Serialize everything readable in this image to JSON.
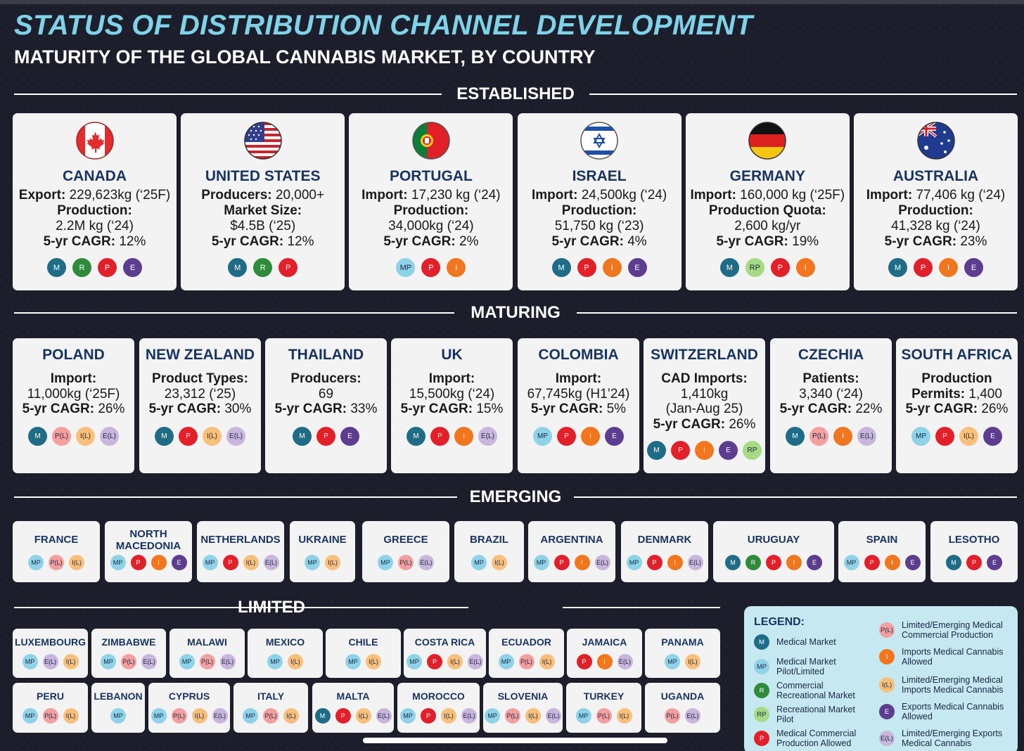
{
  "title": "STATUS OF DISTRIBUTION CHANNEL DEVELOPMENT",
  "subtitle": "MATURITY OF THE GLOBAL CANNABIS MARKET, BY COUNTRY",
  "sections": {
    "established": "ESTABLISHED",
    "maturing": "MATURING",
    "emerging": "EMERGING",
    "limited": "LIMITED"
  },
  "colors": {
    "M": "#1f6c87",
    "MP": "#8fd3e8",
    "R": "#2e8b3a",
    "RP": "#a6db85",
    "P": "#e3202a",
    "I": "#f2761e",
    "E": "#5c3d8f",
    "P(L)": "#f4a0a0",
    "I(L)": "#f9c07b",
    "E(L)": "#c8b6dc"
  },
  "established": [
    {
      "name": "CANADA",
      "flag": "canada-flag-icon",
      "stats": [
        [
          "Export:",
          " 229,623kg (‘25F)"
        ],
        [
          "Production:",
          ""
        ],
        [
          "",
          "2.2M kg (‘24)"
        ],
        [
          "5-yr CAGR:",
          " 12%"
        ]
      ],
      "badges": [
        "M",
        "R",
        "P",
        "E"
      ]
    },
    {
      "name": "UNITED STATES",
      "flag": "united-states-flag-icon",
      "stats": [
        [
          "Producers:",
          " 20,000+"
        ],
        [
          "Market Size:",
          ""
        ],
        [
          "",
          "$4.5B (‘25)"
        ],
        [
          "5-yr CAGR:",
          " 12%"
        ]
      ],
      "badges": [
        "M",
        "R",
        "P"
      ]
    },
    {
      "name": "PORTUGAL",
      "flag": "portugal-flag-icon",
      "stats": [
        [
          "Import:",
          " 17,230 kg (‘24)"
        ],
        [
          "Production:",
          ""
        ],
        [
          "",
          "34,000kg (‘24)"
        ],
        [
          "5-yr CAGR:",
          " 2%"
        ]
      ],
      "badges": [
        "MP",
        "P",
        "I"
      ]
    },
    {
      "name": "ISRAEL",
      "flag": "israel-flag-icon",
      "stats": [
        [
          "Import:",
          " 24,500kg (‘24)"
        ],
        [
          "Production:",
          ""
        ],
        [
          "",
          "51,750 kg (‘23)"
        ],
        [
          "5-yr CAGR:",
          " 4%"
        ]
      ],
      "badges": [
        "M",
        "P",
        "I",
        "E"
      ]
    },
    {
      "name": "GERMANY",
      "flag": "germany-flag-icon",
      "stats": [
        [
          "Import:",
          " 160,000 kg (‘25F)"
        ],
        [
          "Production Quota:",
          ""
        ],
        [
          "",
          "2,600 kg/yr"
        ],
        [
          "5-yr CAGR:",
          " 19%"
        ]
      ],
      "badges": [
        "M",
        "RP",
        "P",
        "I"
      ]
    },
    {
      "name": "AUSTRALIA",
      "flag": "australia-flag-icon",
      "stats": [
        [
          "Import:",
          " 77,406 kg (‘24)"
        ],
        [
          "Production:",
          ""
        ],
        [
          "",
          "41,328 kg (‘24)"
        ],
        [
          "5-yr CAGR:",
          " 23%"
        ]
      ],
      "badges": [
        "M",
        "P",
        "I",
        "E"
      ]
    }
  ],
  "maturing": [
    {
      "name": "POLAND",
      "stats": [
        [
          "Import:",
          ""
        ],
        [
          "",
          "11,000kg (‘25F)"
        ],
        [
          "5-yr CAGR:",
          " 26%"
        ]
      ],
      "badges": [
        "M",
        "P(L)",
        "I(L)",
        "E(L)"
      ]
    },
    {
      "name": "NEW ZEALAND",
      "stats": [
        [
          "Product Types:",
          ""
        ],
        [
          "",
          "23,312 (‘25)"
        ],
        [
          "5-yr CAGR:",
          " 30%"
        ]
      ],
      "badges": [
        "M",
        "P",
        "I(L)",
        "E(L)"
      ]
    },
    {
      "name": "THAILAND",
      "stats": [
        [
          "Producers:",
          ""
        ],
        [
          "",
          "69"
        ],
        [
          "5-yr CAGR:",
          " 33%"
        ]
      ],
      "badges": [
        "M",
        "P",
        "E"
      ]
    },
    {
      "name": "UK",
      "stats": [
        [
          "Import:",
          ""
        ],
        [
          "",
          "15,500kg (‘24)"
        ],
        [
          "5-yr CAGR:",
          " 15%"
        ]
      ],
      "badges": [
        "M",
        "P",
        "I",
        "E(L)"
      ]
    },
    {
      "name": "COLOMBIA",
      "stats": [
        [
          "Import:",
          ""
        ],
        [
          "",
          "67,745kg (H1’24)"
        ],
        [
          "5-yr CAGR:",
          " 5%"
        ]
      ],
      "badges": [
        "MP",
        "P",
        "I",
        "E"
      ]
    },
    {
      "name": "SWITZERLAND",
      "stats": [
        [
          "CAD Imports:",
          ""
        ],
        [
          "",
          "1,410kg"
        ],
        [
          "",
          "(Jan-Aug 25)"
        ],
        [
          "5-yr CAGR:",
          " 26%"
        ]
      ],
      "badges": [
        "M",
        "P",
        "I",
        "E",
        "RP"
      ]
    },
    {
      "name": "CZECHIA",
      "stats": [
        [
          "Patients:",
          ""
        ],
        [
          "",
          "3,340 (‘24)"
        ],
        [
          "5-yr CAGR:",
          " 22%"
        ]
      ],
      "badges": [
        "M",
        "P(L)",
        "I",
        "E(L)"
      ]
    },
    {
      "name": "SOUTH AFRICA",
      "stats": [
        [
          "Production",
          ""
        ],
        [
          "Permits:",
          " 1,400"
        ],
        [
          "5-yr CAGR:",
          " 26%"
        ]
      ],
      "badges": [
        "MP",
        "P",
        "I(L)",
        "E"
      ]
    }
  ],
  "emerging": [
    {
      "name": "FRANCE",
      "badges": [
        "MP",
        "P(L)",
        "I(L)"
      ]
    },
    {
      "name": "NORTH MACEDONIA",
      "badges": [
        "MP",
        "P",
        "I",
        "E"
      ]
    },
    {
      "name": "NETHERLANDS",
      "badges": [
        "MP",
        "P",
        "I(L)",
        "E(L)"
      ]
    },
    {
      "name": "UKRAINE",
      "badges": [
        "MP",
        "I(L)"
      ]
    },
    {
      "name": "GREECE",
      "badges": [
        "MP",
        "P(L)",
        "E(L)"
      ]
    },
    {
      "name": "BRAZIL",
      "badges": [
        "MP",
        "I(L)"
      ]
    },
    {
      "name": "ARGENTINA",
      "badges": [
        "MP",
        "P",
        "I",
        "E(L)"
      ]
    },
    {
      "name": "DENMARK",
      "badges": [
        "MP",
        "P",
        "I",
        "E(L)"
      ]
    },
    {
      "name": "URUGUAY",
      "badges": [
        "M",
        "R",
        "P",
        "I",
        "E"
      ]
    },
    {
      "name": "SPAIN",
      "badges": [
        "MP",
        "P",
        "I",
        "E"
      ]
    },
    {
      "name": "LESOTHO",
      "badges": [
        "M",
        "P",
        "E"
      ]
    }
  ],
  "limited": [
    {
      "name": "LUXEMBOURG",
      "badges": [
        "MP",
        "E(L)",
        "I(L)"
      ]
    },
    {
      "name": "ZIMBABWE",
      "badges": [
        "MP",
        "P(L)",
        "E(L)"
      ]
    },
    {
      "name": "MALAWI",
      "badges": [
        "MP",
        "P(L)",
        "E(L)"
      ]
    },
    {
      "name": "MEXICO",
      "badges": [
        "MP",
        "I(L)"
      ]
    },
    {
      "name": "CHILE",
      "badges": [
        "MP",
        "I(L)"
      ]
    },
    {
      "name": "COSTA RICA",
      "badges": [
        "MP",
        "P",
        "I(L)",
        "E(L)"
      ]
    },
    {
      "name": "ECUADOR",
      "badges": [
        "MP",
        "P(L)",
        "I(L)"
      ]
    },
    {
      "name": "JAMAICA",
      "badges": [
        "P",
        "I",
        "E(L)"
      ]
    },
    {
      "name": "PANAMA",
      "badges": [
        "MP",
        "I(L)"
      ]
    },
    {
      "name": "PERU",
      "badges": [
        "MP",
        "P(L)",
        "I(L)"
      ]
    },
    {
      "name": "LEBANON",
      "badges": [
        "MP"
      ]
    },
    {
      "name": "CYPRUS",
      "badges": [
        "MP",
        "P(L)",
        "I(L)",
        "E(L)"
      ]
    },
    {
      "name": "ITALY",
      "badges": [
        "MP",
        "P(L)",
        "I(L)"
      ]
    },
    {
      "name": "MALTA",
      "badges": [
        "M",
        "P",
        "I(L)",
        "E(L)"
      ]
    },
    {
      "name": "MOROCCO",
      "badges": [
        "MP",
        "P",
        "I(L)",
        "E(L)"
      ]
    },
    {
      "name": "SLOVENIA",
      "badges": [
        "MP",
        "P(L)",
        "I(L)",
        "E(L)"
      ]
    },
    {
      "name": "TURKEY",
      "badges": [
        "MP",
        "P(L)",
        "I(L)"
      ]
    },
    {
      "name": "UGANDA",
      "badges": [
        "P(L)",
        "E(L)"
      ]
    }
  ],
  "legend": {
    "title": "LEGEND:",
    "items": [
      {
        "code": "M",
        "label": "Medical Market"
      },
      {
        "code": "MP",
        "label": "Medical Market Pilot/Limited"
      },
      {
        "code": "R",
        "label": "Commercial Recreational Market"
      },
      {
        "code": "RP",
        "label": "Recreational Market Pilot"
      },
      {
        "code": "P",
        "label": "Medical Commercial Production Allowed"
      },
      {
        "code": "P(L)",
        "label": "Limited/Emerging Medical Commercial Production"
      },
      {
        "code": "I",
        "label": "Imports Medical Cannabis Allowed"
      },
      {
        "code": "I(L)",
        "label": "Limited/Emerging Medical Imports Medical Cannabis"
      },
      {
        "code": "E",
        "label": "Exports Medical Cannabis Allowed"
      },
      {
        "code": "E(L)",
        "label": "Limited/Emerging Exports Medical Cannabis"
      }
    ]
  },
  "chart_data": {
    "type": "table",
    "title": "STATUS OF DISTRIBUTION CHANNEL DEVELOPMENT",
    "subtitle": "MATURITY OF THE GLOBAL CANNABIS MARKET, BY COUNTRY",
    "tiers": [
      "ESTABLISHED",
      "MATURING",
      "EMERGING",
      "LIMITED"
    ],
    "established_cagr_pct": {
      "CANADA": 12,
      "UNITED STATES": 12,
      "PORTUGAL": 2,
      "ISRAEL": 4,
      "GERMANY": 19,
      "AUSTRALIA": 23
    },
    "maturing_cagr_pct": {
      "POLAND": 26,
      "NEW ZEALAND": 30,
      "THAILAND": 33,
      "UK": 15,
      "COLOMBIA": 5,
      "SWITZERLAND": 26,
      "CZECHIA": 22,
      "SOUTH AFRICA": 26
    }
  }
}
